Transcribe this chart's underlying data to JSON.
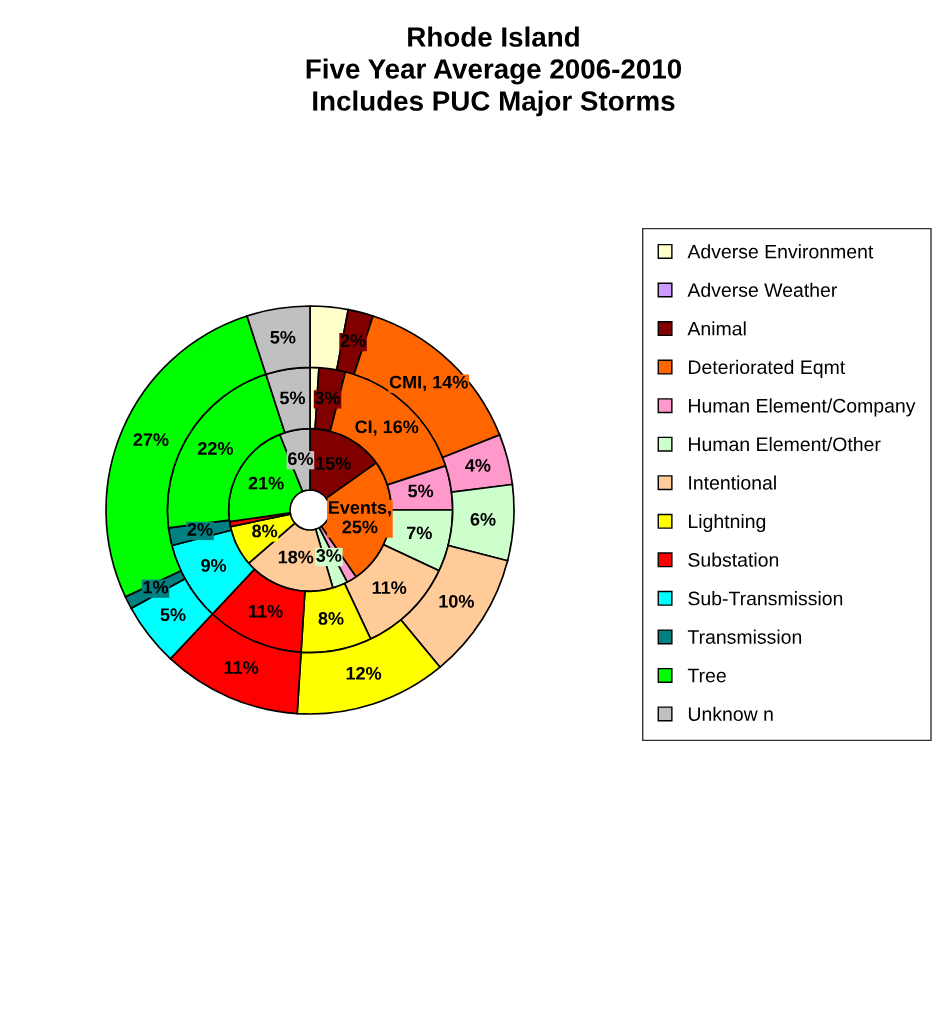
{
  "chart_data": {
    "type": "donut",
    "title": "Rhode Island\nFive Year Average 2006-2010\nIncludes PUC Major Storms",
    "categories": [
      "Adverse Environment",
      "Adverse Weather",
      "Animal",
      "Deteriorated Eqmt",
      "Human Element/Company",
      "Human Element/Other",
      "Intentional",
      "Lightning",
      "Substation",
      "Sub-Transmission",
      "Transmission",
      "Tree",
      "Unknow n"
    ],
    "colors": [
      "#ffffcc",
      "#cc99ff",
      "#800000",
      "#ff6600",
      "#ff99cc",
      "#ccffcc",
      "#ffcc99",
      "#ffff00",
      "#ff0000",
      "#00ffff",
      "#008080",
      "#00ff00",
      "#c0c0c0"
    ],
    "series": [
      {
        "values": [
          0,
          0,
          15,
          25,
          2,
          3,
          18,
          8,
          1,
          0,
          0,
          21,
          6
        ],
        "value_labels": [
          null,
          null,
          "15%",
          "Events,\n25%",
          null,
          "3%",
          "18%",
          "8%",
          null,
          null,
          null,
          "21%",
          "6%"
        ]
      },
      {
        "values": [
          1,
          0,
          3,
          16,
          5,
          7,
          11,
          8,
          11,
          9,
          2,
          22,
          5
        ],
        "value_labels": [
          null,
          null,
          "3%",
          "CI, 16%",
          "5%",
          "7%",
          "11%",
          "8%",
          "11%",
          "9%",
          "2%",
          "22%",
          "5%"
        ]
      },
      {
        "values": [
          3,
          0,
          2,
          14,
          4,
          6,
          10,
          12,
          11,
          5,
          1,
          27,
          5
        ],
        "value_labels": [
          null,
          null,
          "2%",
          "CMI, 14%",
          "4%",
          "6%",
          "10%",
          "12%",
          "11%",
          "5%",
          "1%",
          "27%",
          "5%"
        ]
      }
    ],
    "legend": "right"
  }
}
